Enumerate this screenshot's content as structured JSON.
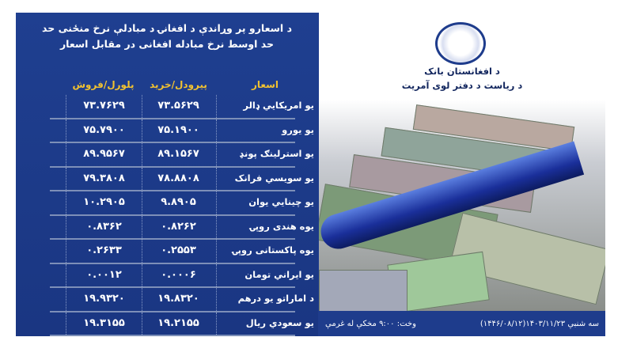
{
  "header": {
    "title_line1": "د اسعارو پر وړاندې د افغانۍ د مبادلې نرخ منځنی حد",
    "title_line2": "حد اوسط نرخ مبادله افغانی در مقابل اسعار"
  },
  "columns": {
    "currency": "اسعار",
    "buy": "پیرودل/خرید",
    "sell": "پلورل/فروش"
  },
  "rows": [
    {
      "name": "يو امريکايي ډالر",
      "buy": "۷۳.۵۶۲۹",
      "sell": "۷۳.۷۶۲۹"
    },
    {
      "name": "يو يورو",
      "buy": "۷۵.۱۹۰۰",
      "sell": "۷۵.۷۹۰۰"
    },
    {
      "name": "يو استرلينګ پونډ",
      "buy": "۸۹.۱۵۶۷",
      "sell": "۸۹.۹۵۶۷"
    },
    {
      "name": "يو سويسي فرانک",
      "buy": "۷۸.۸۸۰۸",
      "sell": "۷۹.۳۸۰۸"
    },
    {
      "name": "يو چينايي يوان",
      "buy": "۹.۸۹۰۵",
      "sell": "۱۰.۲۹۰۵"
    },
    {
      "name": "يوه هندی روپۍ",
      "buy": "۰.۸۲۶۲",
      "sell": "۰.۸۳۶۲"
    },
    {
      "name": "يوه پاکستانی روپۍ",
      "buy": "۰.۲۵۵۳",
      "sell": "۰.۲۶۳۳"
    },
    {
      "name": "يو ايراني تومان",
      "buy": "۰.۰۰۰۶",
      "sell": "۰.۰۰۱۲"
    },
    {
      "name": "د اماراتو يو درهم",
      "buy": "۱۹.۸۳۲۰",
      "sell": "۱۹.۹۳۲۰"
    },
    {
      "name": "يو سعودي ريال",
      "buy": "۱۹.۲۱۵۵",
      "sell": "۱۹.۳۱۵۵"
    }
  ],
  "bank": {
    "logo_text": "DA AFGHANISTAN BANK",
    "name": "د افغانستان بانک",
    "department": "د رياست د دفتر لوی آمريت"
  },
  "footer": {
    "date": "سه شنبې ۱۴۰۳/۱۱/۲۳(۱۴۴۶/۰۸/۱۲)",
    "time": "وخت: ۹:۰۰ مخکې له غرمې"
  },
  "colors": {
    "panel": "#1e3c8c",
    "header_text": "#f2c230",
    "text": "#ffffff"
  }
}
